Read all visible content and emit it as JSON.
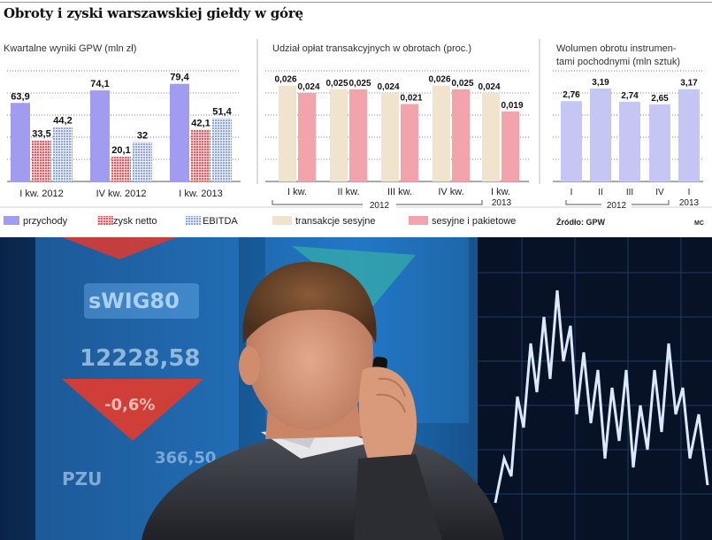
{
  "headline": "Obroty i zyski warszawskiej giełdy w górę",
  "colors": {
    "przychody": "#a29cf0",
    "zysk_netto": "#e75a62",
    "ebitda": "#a7b8ea",
    "transakcje_sesyjne": "#f1e4cf",
    "sesyjne_i_pakietowe": "#f2a3ac",
    "wolumen": "#c5c6f4",
    "grid": "#888888"
  },
  "legend": {
    "przychody": "przychody",
    "zysk_netto": "zysk netto",
    "ebitda": "EBITDA",
    "transakcje_sesyjne": "transakcje sesyjne",
    "sesyjne_i_pakietowe": "sesyjne i pakietowe"
  },
  "source": "Źródło: GPW",
  "credit": "MC",
  "photo": {
    "screen_text_1": "sWIG80",
    "screen_text_2": "12228,58",
    "screen_text_3": "-0,6%",
    "screen_text_4": "PZU",
    "screen_text_5": "366,50"
  },
  "chart_data": [
    {
      "type": "bar",
      "title": "Kwartalne wyniki GPW (mln zł)",
      "categories": [
        "I kw. 2012",
        "IV kw. 2012",
        "I kw. 2013"
      ],
      "series": [
        {
          "name": "przychody",
          "values": [
            63.9,
            74.1,
            79.4
          ],
          "labels": [
            "63,9",
            "74,1",
            "79,4"
          ]
        },
        {
          "name": "zysk netto",
          "values": [
            33.5,
            20.1,
            42.1
          ],
          "labels": [
            "33,5",
            "20,1",
            "42,1"
          ]
        },
        {
          "name": "EBITDA",
          "values": [
            44.2,
            32,
            51.4
          ],
          "labels": [
            "44,2",
            "32",
            "51,4"
          ]
        }
      ],
      "ylim": [
        0,
        90
      ],
      "grid": true
    },
    {
      "type": "bar",
      "title": "Udział opłat transakcyjnych w obrotach (proc.)",
      "categories": [
        "I kw.",
        "II kw.",
        "III kw.",
        "IV kw.",
        "I kw."
      ],
      "category_group": "2012",
      "last_category_year": "2013",
      "series": [
        {
          "name": "transakcje sesyjne",
          "values": [
            0.026,
            0.025,
            0.024,
            0.026,
            0.024
          ],
          "labels": [
            "0,026",
            "0,025",
            "0,024",
            "0,026",
            "0,024"
          ]
        },
        {
          "name": "sesyjne i pakietowe",
          "values": [
            0.024,
            0.025,
            0.021,
            0.025,
            0.019
          ],
          "labels": [
            "0,024",
            "0,025",
            "0,021",
            "0,025",
            "0,019"
          ]
        }
      ],
      "ylim": [
        0,
        0.03
      ],
      "grid": true
    },
    {
      "type": "bar",
      "title_line1": "Wolumen obrotu instrumen-",
      "title_line2": "tami pochodnymi (mln sztuk)",
      "categories": [
        "I",
        "II",
        "III",
        "IV",
        "I"
      ],
      "category_group": "2012",
      "last_category_year": "2013",
      "values": [
        2.76,
        3.19,
        2.74,
        2.65,
        3.17
      ],
      "labels": [
        "2,76",
        "3,19",
        "2,74",
        "2,65",
        "3,17"
      ],
      "ylim": [
        0,
        3.8
      ],
      "grid": true
    }
  ]
}
